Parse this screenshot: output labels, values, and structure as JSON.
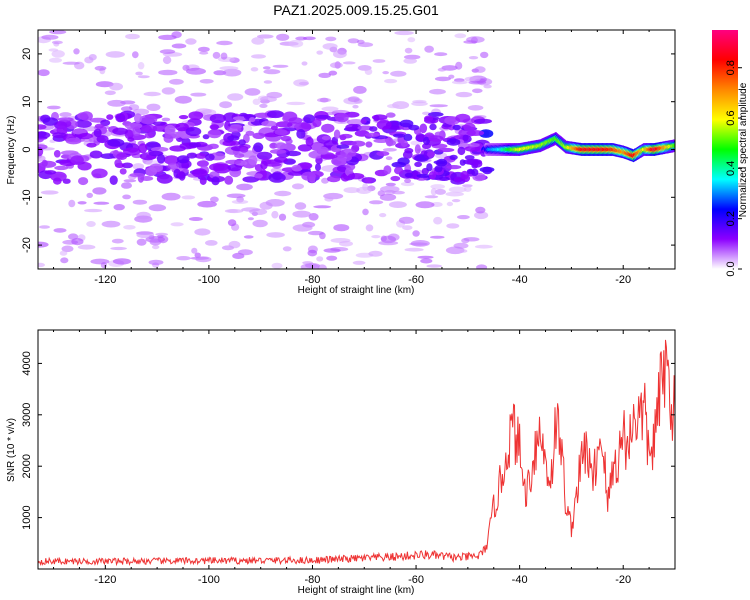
{
  "title": "PAZ1.2025.009.15.25.G01",
  "chart_data": [
    {
      "type": "heatmap",
      "xlabel": "Height of straight line (km)",
      "ylabel": "Frequency (Hz)",
      "xlim": [
        -133,
        -10
      ],
      "ylim": [
        -25,
        25
      ],
      "xticks": [
        -120,
        -100,
        -80,
        -60,
        -40,
        -20
      ],
      "yticks": [
        -20,
        -10,
        0,
        10,
        20
      ],
      "colorbar": {
        "label": "Normalized spectral amplitude",
        "range": [
          0,
          0.95
        ],
        "ticks": [
          "0.0",
          "0.2",
          "0.4",
          "0.6",
          "0.8"
        ],
        "colormap": [
          "#ffffff",
          "#8c00ff",
          "#0000ff",
          "#00ffff",
          "#00ff00",
          "#ffff00",
          "#ff8800",
          "#ff0000",
          "#ff0080"
        ]
      },
      "ridge": [
        {
          "x": -133,
          "y": 0,
          "amp": 0.12
        },
        {
          "x": -120,
          "y": 0.5,
          "amp": 0.12
        },
        {
          "x": -100,
          "y": 0.3,
          "amp": 0.12
        },
        {
          "x": -80,
          "y": 0.5,
          "amp": 0.12
        },
        {
          "x": -60,
          "y": 0.5,
          "amp": 0.14
        },
        {
          "x": -47,
          "y": 0,
          "amp": 0.12
        },
        {
          "x": -46,
          "y": 0,
          "amp": 0.3
        },
        {
          "x": -44,
          "y": 0,
          "amp": 0.35
        },
        {
          "x": -40,
          "y": 0,
          "amp": 0.6
        },
        {
          "x": -36,
          "y": 0.8,
          "amp": 0.55
        },
        {
          "x": -33,
          "y": 2.3,
          "amp": 0.5
        },
        {
          "x": -31,
          "y": 0.5,
          "amp": 0.55
        },
        {
          "x": -28,
          "y": 0,
          "amp": 0.85
        },
        {
          "x": -24,
          "y": 0,
          "amp": 0.85
        },
        {
          "x": -22,
          "y": 0,
          "amp": 0.8
        },
        {
          "x": -20,
          "y": -0.5,
          "amp": 0.7
        },
        {
          "x": -18,
          "y": -1.3,
          "amp": 0.85
        },
        {
          "x": -16,
          "y": 0,
          "amp": 0.6
        },
        {
          "x": -14,
          "y": 0,
          "amp": 0.9
        },
        {
          "x": -10,
          "y": 0.8,
          "amp": 0.5
        }
      ]
    },
    {
      "type": "line",
      "xlabel": "Height of straight line (km)",
      "ylabel": "SNR (10 * v/v)",
      "xlim": [
        -133,
        -10
      ],
      "ylim": [
        0,
        4650
      ],
      "xticks": [
        -120,
        -100,
        -80,
        -60,
        -40,
        -20
      ],
      "yticks": [
        1000,
        2000,
        3000,
        4000
      ],
      "color": "#ee3333",
      "series": [
        {
          "x": [
            -133,
            -120,
            -100,
            -80,
            -65,
            -58,
            -52,
            -48,
            -47,
            -46,
            -45,
            -44,
            -43,
            -42,
            -41,
            -40,
            -39,
            -38,
            -37,
            -36,
            -35,
            -34,
            -33,
            -32,
            -31,
            -30,
            -29,
            -28,
            -27,
            -26,
            -25,
            -24,
            -23,
            -22,
            -21,
            -20,
            -19,
            -18,
            -17,
            -16,
            -15,
            -14,
            -13,
            -12,
            -11,
            -10
          ],
          "y": [
            150,
            150,
            160,
            170,
            230,
            280,
            220,
            250,
            330,
            600,
            1200,
            1550,
            2000,
            2550,
            2700,
            2300,
            1500,
            1750,
            2400,
            2650,
            2100,
            1700,
            2850,
            2400,
            1200,
            800,
            1500,
            2100,
            2400,
            1600,
            2300,
            2600,
            1200,
            2000,
            2100,
            2700,
            2300,
            3100,
            2900,
            3100,
            2200,
            2500,
            3300,
            4000,
            3500,
            3000
          ]
        }
      ]
    }
  ]
}
